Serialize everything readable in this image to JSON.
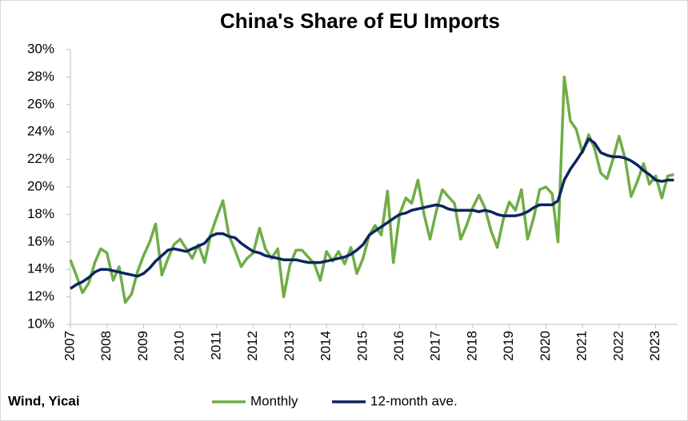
{
  "chart_data": {
    "type": "line",
    "title": "China's Share of EU Imports",
    "source": "Wind, Yicai",
    "x": [
      2007,
      2007.17,
      2007.33,
      2007.5,
      2007.67,
      2007.83,
      2008,
      2008.17,
      2008.33,
      2008.5,
      2008.67,
      2008.83,
      2009,
      2009.17,
      2009.33,
      2009.5,
      2009.67,
      2009.83,
      2010,
      2010.17,
      2010.33,
      2010.5,
      2010.67,
      2010.83,
      2011,
      2011.17,
      2011.33,
      2011.5,
      2011.67,
      2011.83,
      2012,
      2012.17,
      2012.33,
      2012.5,
      2012.67,
      2012.83,
      2013,
      2013.17,
      2013.33,
      2013.5,
      2013.67,
      2013.83,
      2014,
      2014.17,
      2014.33,
      2014.5,
      2014.67,
      2014.83,
      2015,
      2015.17,
      2015.33,
      2015.5,
      2015.67,
      2015.83,
      2016,
      2016.17,
      2016.33,
      2016.5,
      2016.67,
      2016.83,
      2017,
      2017.17,
      2017.33,
      2017.5,
      2017.67,
      2017.83,
      2018,
      2018.17,
      2018.33,
      2018.5,
      2018.67,
      2018.83,
      2019,
      2019.17,
      2019.33,
      2019.5,
      2019.67,
      2019.83,
      2020,
      2020.17,
      2020.33,
      2020.5,
      2020.67,
      2020.83,
      2021,
      2021.17,
      2021.33,
      2021.5,
      2021.67,
      2021.83,
      2022,
      2022.17,
      2022.33,
      2022.5,
      2022.67,
      2022.83,
      2023,
      2023.17,
      2023.33,
      2023.5
    ],
    "series": [
      {
        "name": "Monthly",
        "color": "#70ad47",
        "values": [
          14.7,
          13.5,
          12.3,
          13.0,
          14.5,
          15.5,
          15.2,
          13.2,
          14.2,
          11.6,
          12.2,
          13.8,
          15.0,
          16.0,
          17.3,
          13.6,
          14.8,
          15.8,
          16.2,
          15.5,
          14.8,
          15.8,
          14.5,
          16.5,
          17.8,
          19.0,
          16.5,
          15.4,
          14.2,
          14.8,
          15.2,
          17.0,
          15.5,
          14.8,
          15.5,
          12.0,
          14.3,
          15.4,
          15.4,
          14.9,
          14.4,
          13.2,
          15.3,
          14.6,
          15.3,
          14.4,
          15.6,
          13.7,
          14.8,
          16.5,
          17.2,
          16.5,
          19.7,
          14.5,
          18.0,
          19.2,
          18.8,
          20.5,
          18.0,
          16.2,
          18.2,
          19.8,
          19.3,
          18.8,
          16.2,
          17.2,
          18.5,
          19.4,
          18.5,
          16.8,
          15.6,
          17.6,
          18.9,
          18.3,
          19.8,
          16.2,
          17.8,
          19.8,
          20.0,
          19.5,
          16.0,
          28.0,
          24.8,
          24.2,
          22.5,
          23.8,
          22.8,
          21.0,
          20.6,
          22.0,
          23.7,
          22.0,
          19.3,
          20.4,
          21.7,
          20.2,
          20.8,
          19.2,
          20.8,
          20.9
        ]
      },
      {
        "name": "12-month ave.",
        "color": "#0c2461",
        "values": [
          12.6,
          12.9,
          13.1,
          13.4,
          13.8,
          14.0,
          14.0,
          13.9,
          13.8,
          13.7,
          13.6,
          13.5,
          13.7,
          14.1,
          14.6,
          15.0,
          15.4,
          15.5,
          15.4,
          15.3,
          15.5,
          15.7,
          15.9,
          16.4,
          16.6,
          16.6,
          16.4,
          16.3,
          15.9,
          15.6,
          15.3,
          15.2,
          15.0,
          14.9,
          14.8,
          14.7,
          14.7,
          14.7,
          14.6,
          14.5,
          14.5,
          14.5,
          14.6,
          14.7,
          14.8,
          14.9,
          15.1,
          15.4,
          15.8,
          16.5,
          16.8,
          17.1,
          17.4,
          17.7,
          18.0,
          18.1,
          18.3,
          18.4,
          18.5,
          18.6,
          18.7,
          18.6,
          18.4,
          18.3,
          18.3,
          18.3,
          18.3,
          18.2,
          18.3,
          18.2,
          18.0,
          17.9,
          17.9,
          17.9,
          18.0,
          18.2,
          18.5,
          18.7,
          18.7,
          18.7,
          19.0,
          20.5,
          21.3,
          21.9,
          22.6,
          23.5,
          23.2,
          22.5,
          22.3,
          22.2,
          22.2,
          22.1,
          21.9,
          21.6,
          21.2,
          20.9,
          20.5,
          20.4,
          20.5,
          20.5
        ]
      }
    ],
    "xlim": [
      2007,
      2023.6
    ],
    "xticks": [
      2007,
      2008,
      2009,
      2010,
      2011,
      2012,
      2013,
      2014,
      2015,
      2016,
      2017,
      2018,
      2019,
      2020,
      2021,
      2022,
      2023
    ],
    "ylim": [
      10,
      30
    ],
    "yticks": [
      {
        "value": 10,
        "label": "10%"
      },
      {
        "value": 12,
        "label": "12%"
      },
      {
        "value": 14,
        "label": "14%"
      },
      {
        "value": 16,
        "label": "16%"
      },
      {
        "value": 18,
        "label": "18%"
      },
      {
        "value": 20,
        "label": "20%"
      },
      {
        "value": 22,
        "label": "22%"
      },
      {
        "value": 24,
        "label": "24%"
      },
      {
        "value": 26,
        "label": "26%"
      },
      {
        "value": 28,
        "label": "28%"
      },
      {
        "value": 30,
        "label": "30%"
      }
    ],
    "grid": false,
    "legend": "bottom"
  }
}
